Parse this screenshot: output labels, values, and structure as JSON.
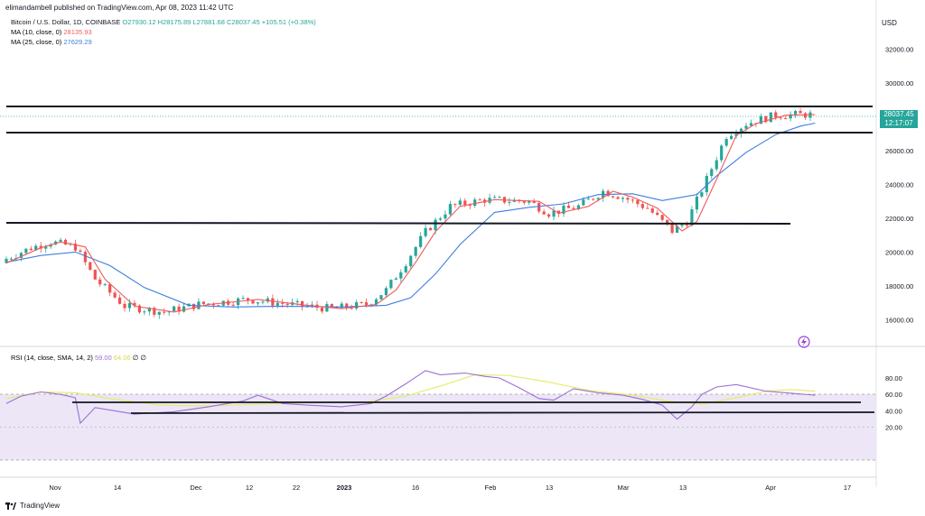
{
  "header": {
    "published": "elimandambell published on TradingView.com, Apr 08, 2023 11:42 UTC",
    "symbol": "Bitcoin / U.S. Dollar, 1D, COINBASE",
    "ohlc": {
      "o": "O27930.12",
      "h": "H28175.89",
      "l": "L27881.68",
      "c": "C28037.45",
      "chg": "+105.51 (+0.38%)"
    },
    "ma10": {
      "label": "MA (10, close, 0)",
      "value": "28135.93"
    },
    "ma25": {
      "label": "MA (25, close, 0)",
      "value": "27629.29"
    },
    "rsi": {
      "label": "RSI (14, close, SMA, 14, 2)",
      "v1": "59.00",
      "v2": "64.06",
      "v3": "∅",
      "v4": "∅"
    }
  },
  "price_axis": {
    "currency": "USD",
    "ticks": [
      "32000.00",
      "30000.00",
      "28000.00",
      "26000.00",
      "24000.00",
      "22000.00",
      "20000.00",
      "18000.00",
      "16000.00"
    ],
    "last_price": "28037.45",
    "countdown": "12:17:07"
  },
  "rsi_axis": {
    "ticks": [
      "80.00",
      "60.00",
      "40.00",
      "20.00"
    ]
  },
  "time_axis": {
    "ticks": [
      "Nov",
      "14",
      "Dec",
      "12",
      "22",
      "2023",
      "16",
      "Feb",
      "13",
      "Mar",
      "13",
      "Apr",
      "17"
    ]
  },
  "footer": {
    "brand": "TradingView"
  },
  "icons": [
    "lightning-icon",
    "tradingview-logo-icon"
  ],
  "colors": {
    "up": "#26a69a",
    "down": "#ef5350",
    "ma10": "#f05a5a",
    "ma25": "#3d7ee0",
    "rsi": "#9b6fd3",
    "rsi_ma": "#e6ec6c",
    "rsi_band": "#ece6f7"
  },
  "chart_data": [
    {
      "type": "line",
      "title": "Bitcoin / U.S. Dollar, 1D, COINBASE",
      "ylabel": "USD",
      "ylim": [
        14600,
        33200
      ],
      "grid": false,
      "horizontal_levels": [
        28600,
        27050,
        21650
      ],
      "series": [
        {
          "name": "MA (10, close, 0)",
          "x": [
            "2022-10-25",
            "2022-11-01",
            "2022-11-05",
            "2022-11-10",
            "2022-11-14",
            "2022-11-20",
            "2022-11-28",
            "2022-12-05",
            "2022-12-15",
            "2022-12-25",
            "2023-01-01",
            "2023-01-08",
            "2023-01-12",
            "2023-01-16",
            "2023-01-20",
            "2023-01-25",
            "2023-02-01",
            "2023-02-10",
            "2023-02-14",
            "2023-02-20",
            "2023-02-25",
            "2023-03-01",
            "2023-03-06",
            "2023-03-11",
            "2023-03-14",
            "2023-03-18",
            "2023-03-22",
            "2023-03-26",
            "2023-04-01",
            "2023-04-07"
          ],
          "y": [
            19350,
            20250,
            20600,
            20300,
            18400,
            16800,
            16450,
            16900,
            17200,
            16850,
            16650,
            16900,
            17750,
            19400,
            21200,
            22700,
            23100,
            23000,
            22300,
            22700,
            23600,
            23250,
            22600,
            21250,
            21800,
            24300,
            26900,
            27600,
            28100,
            28135
          ]
        },
        {
          "name": "MA (25, close, 0)",
          "x": [
            "2022-10-25",
            "2022-11-01",
            "2022-11-08",
            "2022-11-15",
            "2022-11-22",
            "2022-12-01",
            "2022-12-10",
            "2022-12-20",
            "2023-01-01",
            "2023-01-10",
            "2023-01-15",
            "2023-01-20",
            "2023-01-25",
            "2023-02-01",
            "2023-02-08",
            "2023-02-15",
            "2023-02-22",
            "2023-03-01",
            "2023-03-07",
            "2023-03-14",
            "2023-03-18",
            "2023-03-24",
            "2023-03-30",
            "2023-04-04",
            "2023-04-07"
          ],
          "y": [
            19400,
            19800,
            20000,
            19200,
            17900,
            16850,
            16750,
            16800,
            16750,
            16850,
            17300,
            18700,
            20450,
            22350,
            22650,
            22850,
            23400,
            23450,
            23050,
            23400,
            24500,
            25900,
            26950,
            27450,
            27629
          ]
        }
      ]
    },
    {
      "type": "line",
      "title": "RSI (14, close, SMA, 14, 2)",
      "ylim": [
        20,
        90
      ],
      "grid": false,
      "bands": {
        "upper": 70,
        "middle": 50,
        "lower": 30
      },
      "horizontal_levels": [
        65,
        59
      ],
      "series": [
        {
          "name": "RSI",
          "x": [
            "2022-10-25",
            "2022-10-28",
            "2022-11-01",
            "2022-11-05",
            "2022-11-08",
            "2022-11-09",
            "2022-11-12",
            "2022-11-20",
            "2022-11-28",
            "2022-12-05",
            "2022-12-12",
            "2022-12-15",
            "2022-12-20",
            "2022-12-25",
            "2023-01-01",
            "2023-01-07",
            "2023-01-10",
            "2023-01-14",
            "2023-01-18",
            "2023-01-21",
            "2023-01-26",
            "2023-01-30",
            "2023-02-02",
            "2023-02-06",
            "2023-02-10",
            "2023-02-13",
            "2023-02-17",
            "2023-02-22",
            "2023-02-27",
            "2023-03-03",
            "2023-03-07",
            "2023-03-10",
            "2023-03-13",
            "2023-03-15",
            "2023-03-18",
            "2023-03-22",
            "2023-03-28",
            "2023-04-03",
            "2023-04-07"
          ],
          "y": [
            49,
            58,
            63,
            60,
            56,
            25,
            44,
            36,
            39,
            45,
            52,
            59,
            49,
            47,
            45,
            49,
            58,
            73,
            89,
            84,
            86,
            82,
            80,
            68,
            55,
            53,
            67,
            62,
            59,
            54,
            47,
            30,
            45,
            60,
            69,
            72,
            64,
            61,
            59
          ]
        },
        {
          "name": "RSI-based MA",
          "x": [
            "2022-10-25",
            "2022-11-01",
            "2022-11-08",
            "2022-11-15",
            "2022-11-25",
            "2022-12-05",
            "2022-12-15",
            "2022-12-25",
            "2023-01-05",
            "2023-01-14",
            "2023-01-22",
            "2023-01-28",
            "2023-02-04",
            "2023-02-12",
            "2023-02-20",
            "2023-03-01",
            "2023-03-08",
            "2023-03-15",
            "2023-03-22",
            "2023-03-28",
            "2023-04-02",
            "2023-04-07"
          ],
          "y": [
            55,
            63,
            62,
            55,
            47,
            46,
            48,
            50,
            50,
            58,
            72,
            84,
            83,
            75,
            65,
            59,
            52,
            48,
            56,
            64,
            66,
            64
          ]
        }
      ]
    }
  ]
}
